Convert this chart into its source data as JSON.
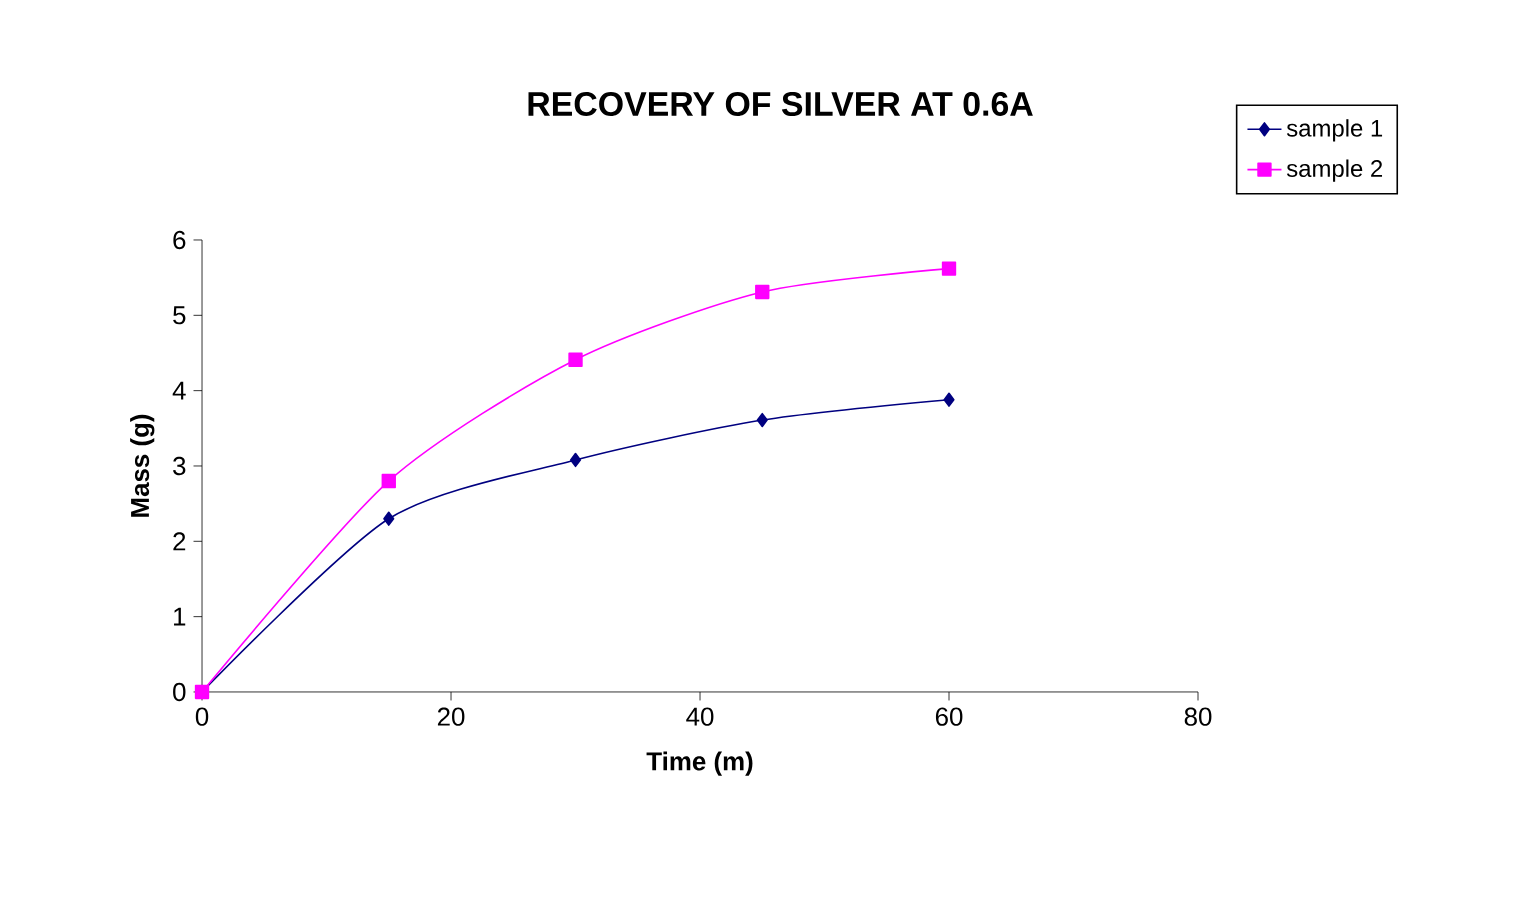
{
  "chart_data": {
    "type": "line",
    "title": "RECOVERY OF SILVER AT 0.6A",
    "xlabel": "Time (m)",
    "ylabel": "Mass (g)",
    "x": [
      0,
      15,
      30,
      45,
      60
    ],
    "series": [
      {
        "name": "sample 1",
        "color": "#000080",
        "marker": "diamond",
        "values": [
          0,
          2.3,
          3.08,
          3.61,
          3.88
        ]
      },
      {
        "name": "sample 2",
        "color": "#ff00ff",
        "marker": "square",
        "values": [
          0,
          2.8,
          4.41,
          5.31,
          5.62
        ]
      }
    ],
    "xlim": [
      0,
      80
    ],
    "xticks": [
      0,
      20,
      40,
      60,
      80
    ],
    "ylim": [
      0,
      6
    ],
    "yticks": [
      0,
      1,
      2,
      3,
      4,
      5,
      6
    ],
    "grid": false,
    "legend": "top right",
    "line_style": "solid"
  }
}
